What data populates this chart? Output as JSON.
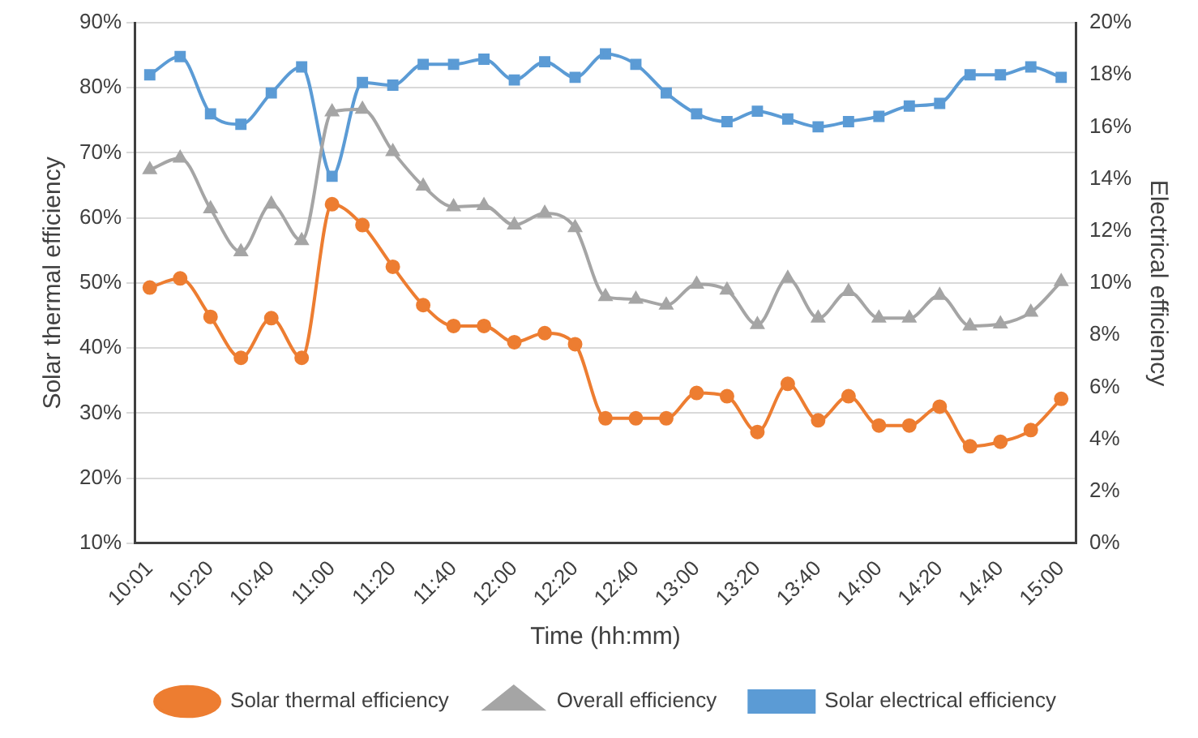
{
  "chart_data": {
    "type": "line",
    "xlabel": "Time (hh:mm)",
    "ylabel": "Solar thermal efficiency",
    "y2label": "Electrical efficiency",
    "categories": [
      "10:01",
      null,
      "10:20",
      null,
      "10:40",
      null,
      "11:00",
      null,
      "11:20",
      null,
      "11:40",
      null,
      "12:00",
      null,
      "12:20",
      null,
      "12:40",
      null,
      "13:00",
      null,
      "13:20",
      null,
      "13:40",
      null,
      "14:00",
      null,
      "14:20",
      null,
      "14:40",
      null,
      "15:00"
    ],
    "series": [
      {
        "name": "Solar thermal efficiency",
        "color": "#ed7d31",
        "marker": "circle",
        "values": [
          49.3,
          50.7,
          44.8,
          38.5,
          44.6,
          38.5,
          62.1,
          58.9,
          52.5,
          46.6,
          43.4,
          43.4,
          40.9,
          42.3,
          40.6,
          29.2,
          29.2,
          29.2,
          33.1,
          32.6,
          27.1,
          34.5,
          28.9,
          32.6,
          28.1,
          28.1,
          31.0,
          24.9,
          25.6,
          27.4,
          32.2
        ]
      },
      {
        "name": "Overall efficiency",
        "color": "#a5a5a5",
        "marker": "triangle",
        "values": [
          67.4,
          69.2,
          61.4,
          54.8,
          62.1,
          56.5,
          76.3,
          76.7,
          70.2,
          64.9,
          61.7,
          61.9,
          58.9,
          60.7,
          58.5,
          47.9,
          47.5,
          46.6,
          49.8,
          48.9,
          43.6,
          50.7,
          44.6,
          48.7,
          44.6,
          44.6,
          48.1,
          43.4,
          43.7,
          45.5,
          50.2
        ]
      },
      {
        "name": "Solar electrical efficiency",
        "color": "#5b9bd5",
        "marker": "square",
        "axis": "y2",
        "values": [
          18.0,
          18.7,
          16.5,
          16.1,
          17.3,
          18.3,
          14.1,
          17.7,
          17.6,
          18.4,
          18.4,
          18.6,
          17.8,
          18.5,
          17.9,
          18.8,
          18.4,
          17.3,
          16.5,
          16.2,
          16.6,
          16.3,
          16.0,
          16.2,
          16.4,
          16.8,
          16.9,
          18.0,
          18.0,
          18.3,
          17.9
        ]
      }
    ],
    "ylim": [
      10,
      90
    ],
    "yticks": [
      {
        "value": 10,
        "label": "10%"
      },
      {
        "value": 20,
        "label": "20%"
      },
      {
        "value": 30,
        "label": "30%"
      },
      {
        "value": 40,
        "label": "40%"
      },
      {
        "value": 50,
        "label": "50%"
      },
      {
        "value": 60,
        "label": "60%"
      },
      {
        "value": 70,
        "label": "70%"
      },
      {
        "value": 80,
        "label": "80%"
      },
      {
        "value": 90,
        "label": "90%"
      }
    ],
    "y2lim": [
      0,
      20
    ],
    "y2ticks": [
      {
        "value": 0,
        "label": "0%"
      },
      {
        "value": 2,
        "label": "2%"
      },
      {
        "value": 4,
        "label": "4%"
      },
      {
        "value": 6,
        "label": "6%"
      },
      {
        "value": 8,
        "label": "8%"
      },
      {
        "value": 10,
        "label": "10%"
      },
      {
        "value": 12,
        "label": "12%"
      },
      {
        "value": 14,
        "label": "14%"
      },
      {
        "value": 16,
        "label": "16%"
      },
      {
        "value": 18,
        "label": "18%"
      },
      {
        "value": 20,
        "label": "20%"
      }
    ],
    "grid": "y",
    "legend": "bottom",
    "line_style": "solid"
  }
}
